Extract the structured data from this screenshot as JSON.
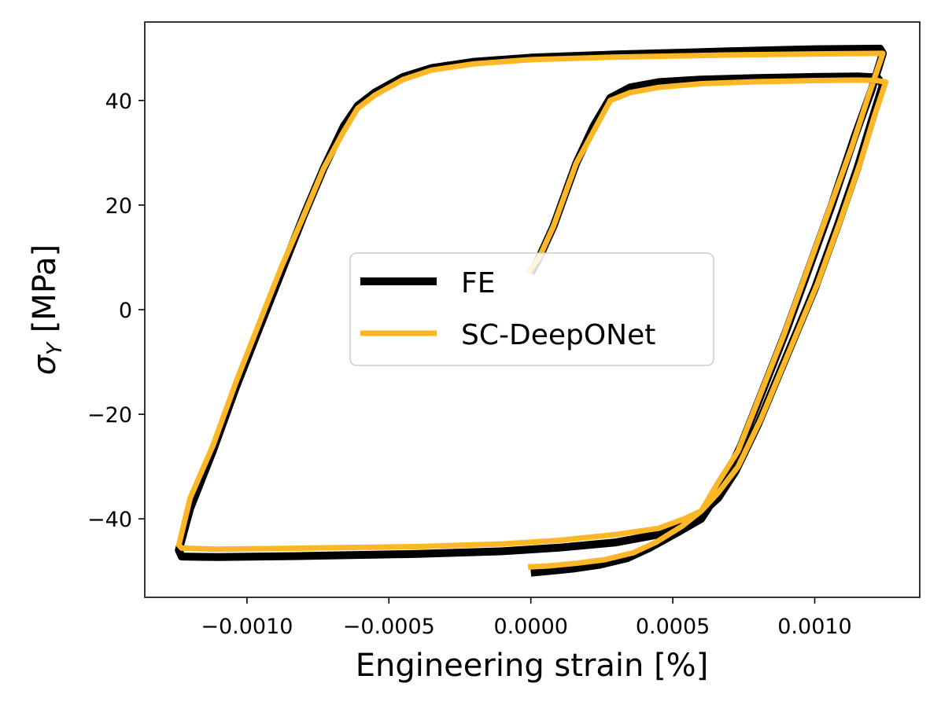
{
  "chart_data": {
    "type": "line",
    "title": "",
    "xlabel": "Engineering strain [%]",
    "ylabel_symbol": "σ",
    "ylabel_subscript": "Y",
    "ylabel_unit": "[MPa]",
    "xlim": [
      -0.00136,
      0.00137
    ],
    "ylim": [
      -55,
      55
    ],
    "x_ticks": [
      -0.001,
      -0.0005,
      0.0,
      0.0005,
      0.001
    ],
    "x_tick_labels": [
      "−0.0010",
      "−0.0005",
      "0.0000",
      "0.0005",
      "0.0010"
    ],
    "y_ticks": [
      -40,
      -20,
      0,
      20,
      40
    ],
    "y_tick_labels": [
      "−40",
      "−20",
      "0",
      "20",
      "40"
    ],
    "grid": false,
    "legend_position": "center",
    "series": [
      {
        "name": "FE",
        "color": "#000000",
        "x": [
          0.0,
          3e-05,
          8e-05,
          0.00012,
          0.00016,
          0.00022,
          0.00028,
          0.00035,
          0.00045,
          0.0006,
          0.0008,
          0.001,
          0.00115,
          0.00122,
          0.00124,
          0.0012,
          0.00115,
          0.00108,
          0.001,
          0.0009,
          0.0008,
          0.00072,
          0.00066,
          0.0006,
          0.00054,
          0.00045,
          0.0003,
          0.0001,
          -0.0001,
          -0.0004,
          -0.0008,
          -0.0011,
          -0.00123,
          -0.00124,
          -0.0012,
          -0.00112,
          -0.00104,
          -0.00096,
          -0.00088,
          -0.0008,
          -0.00073,
          -0.00066,
          -0.00061,
          -0.00055,
          -0.00045,
          -0.00035,
          -0.0002,
          0.0,
          0.0003,
          0.0007,
          0.001,
          0.00123,
          0.00124,
          0.0012,
          0.00114,
          0.00106,
          0.00098,
          0.0009,
          0.00082,
          0.00074,
          0.00066,
          0.0006,
          0.00052,
          0.00042,
          0.00034,
          0.00024,
          0.00015,
          6e-05,
          0.0
        ],
        "y": [
          7,
          10,
          16,
          22,
          28,
          35,
          40.5,
          42.5,
          43.5,
          44,
          44.3,
          44.5,
          44.6,
          44.4,
          43,
          36,
          27,
          16,
          4,
          -9,
          -22,
          -31,
          -36,
          -39,
          -41,
          -43,
          -44.5,
          -45.5,
          -46.2,
          -46.7,
          -47.1,
          -47.3,
          -47.2,
          -46,
          -38,
          -27,
          -15,
          -4,
          7,
          18,
          27,
          35,
          39,
          41.5,
          44.5,
          46.2,
          47.4,
          48.2,
          48.8,
          49.4,
          49.8,
          49.9,
          49,
          42,
          33,
          20,
          8,
          -4,
          -15,
          -26,
          -35,
          -40,
          -42.5,
          -45.5,
          -47.5,
          -48.8,
          -49.5,
          -50,
          -50.3
        ]
      },
      {
        "name": "SC-DeepONet",
        "color": "#fbb725",
        "x": [
          -1e-05,
          3e-05,
          8e-05,
          0.00012,
          0.00016,
          0.00022,
          0.00028,
          0.00035,
          0.00045,
          0.0006,
          0.0008,
          0.001,
          0.00115,
          0.00122,
          0.00125,
          0.00121,
          0.00116,
          0.00109,
          0.00101,
          0.00091,
          0.00081,
          0.00073,
          0.00066,
          0.0006,
          0.00054,
          0.00045,
          0.0003,
          0.0001,
          -0.0001,
          -0.0004,
          -0.0008,
          -0.0011,
          -0.00123,
          -0.00124,
          -0.0012,
          -0.00112,
          -0.00104,
          -0.00096,
          -0.00088,
          -0.0008,
          -0.00073,
          -0.00066,
          -0.00061,
          -0.00055,
          -0.00045,
          -0.00035,
          -0.0002,
          0.0,
          0.0003,
          0.0007,
          0.001,
          0.00124,
          0.00124,
          0.00119,
          0.00113,
          0.00105,
          0.00097,
          0.00089,
          0.00081,
          0.00073,
          0.00066,
          0.0006,
          0.00053,
          0.00044,
          0.00036,
          0.00026,
          0.00016,
          6e-05,
          -1e-05
        ],
        "y": [
          7,
          10,
          16,
          22,
          28,
          34,
          40,
          41.5,
          42.5,
          43.2,
          43.6,
          43.8,
          43.9,
          43.8,
          43.5,
          37,
          28,
          17,
          5,
          -8,
          -21,
          -30,
          -35,
          -38.5,
          -40,
          -41.8,
          -43,
          -44.1,
          -44.8,
          -45.3,
          -45.6,
          -45.8,
          -45.6,
          -45,
          -36,
          -26,
          -14,
          -3,
          8,
          18,
          27,
          34,
          38.5,
          41,
          44,
          45.8,
          47,
          47.8,
          48.3,
          48.7,
          48.9,
          49,
          49,
          41,
          31,
          19,
          7,
          -5,
          -16,
          -27,
          -33,
          -38.5,
          -41.5,
          -44.5,
          -46.5,
          -47.8,
          -48.5,
          -49,
          -49.2
        ]
      }
    ]
  }
}
